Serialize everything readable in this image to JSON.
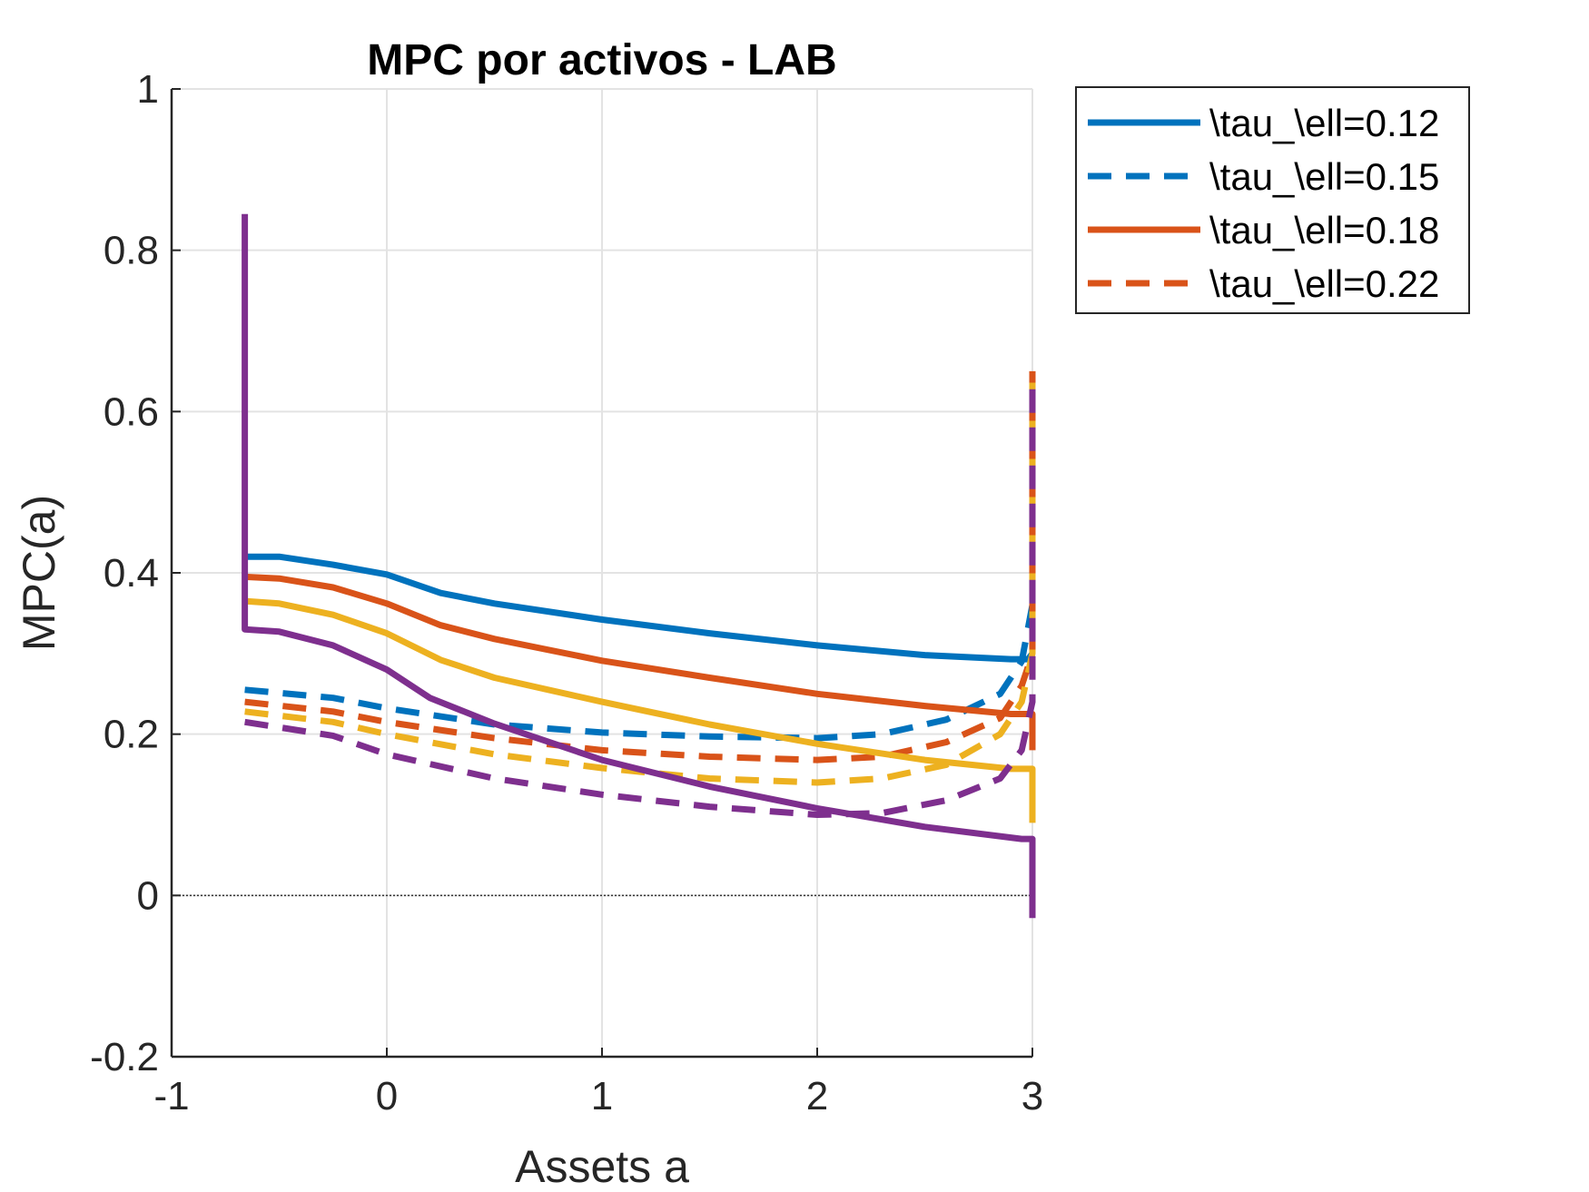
{
  "chart_data": {
    "type": "line",
    "title": "MPC por activos - LAB",
    "xlabel": "Assets a",
    "ylabel": "MPC(a)",
    "xlim": [
      -1,
      3
    ],
    "ylim": [
      -0.2,
      1
    ],
    "xticks": [
      -1,
      0,
      1,
      2,
      3
    ],
    "xtick_labels": [
      "-1",
      "0",
      "1",
      "2",
      "3"
    ],
    "yticks": [
      -0.2,
      0,
      0.2,
      0.4,
      0.6,
      0.8,
      1
    ],
    "ytick_labels": [
      "-0.2",
      "0",
      "0.2",
      "0.4",
      "0.6",
      "0.8",
      "1"
    ],
    "grid": true,
    "zero_reference_line": true,
    "legend_position": "outside-top-right",
    "series": [
      {
        "name": "\\tau_\\ell=0.12",
        "color": "#0072BD",
        "style": "solid",
        "x": [
          -0.66,
          -0.5,
          -0.25,
          0,
          0.25,
          0.5,
          1,
          1.5,
          2,
          2.5,
          2.9,
          2.98,
          3.0
        ],
        "y": [
          0.42,
          0.42,
          0.41,
          0.398,
          0.375,
          0.362,
          0.342,
          0.325,
          0.31,
          0.298,
          0.293,
          0.293,
          0.3
        ]
      },
      {
        "name": "\\tau_\\ell=0.15",
        "color": "#0072BD",
        "style": "dashed",
        "x": [
          -0.66,
          -0.25,
          0,
          0.5,
          1,
          1.5,
          2,
          2.3,
          2.6,
          2.85,
          2.95,
          3.0
        ],
        "y": [
          0.255,
          0.245,
          0.232,
          0.212,
          0.202,
          0.197,
          0.195,
          0.2,
          0.218,
          0.25,
          0.29,
          0.36
        ]
      },
      {
        "name": "\\tau_\\ell=0.18",
        "color": "#D95319",
        "style": "solid",
        "x": [
          -0.66,
          -0.5,
          -0.25,
          0,
          0.25,
          0.5,
          1,
          1.5,
          2,
          2.5,
          2.9,
          3.0,
          3.0
        ],
        "y": [
          0.395,
          0.393,
          0.382,
          0.362,
          0.335,
          0.318,
          0.291,
          0.27,
          0.25,
          0.235,
          0.225,
          0.225,
          0.18
        ]
      },
      {
        "name": "\\tau_\\ell=0.22",
        "color": "#D95319",
        "style": "dashed",
        "x": [
          -0.66,
          -0.25,
          0,
          0.5,
          1,
          1.5,
          2,
          2.3,
          2.6,
          2.85,
          2.95,
          3.0,
          3.0
        ],
        "y": [
          0.24,
          0.228,
          0.215,
          0.195,
          0.18,
          0.172,
          0.168,
          0.172,
          0.19,
          0.22,
          0.26,
          0.3,
          0.65
        ]
      },
      {
        "color": "#EDB120",
        "style": "solid",
        "x": [
          -0.66,
          -0.5,
          -0.25,
          0,
          0.25,
          0.5,
          1,
          1.5,
          2,
          2.5,
          2.9,
          3.0,
          3.0
        ],
        "y": [
          0.365,
          0.362,
          0.348,
          0.325,
          0.292,
          0.27,
          0.24,
          0.212,
          0.188,
          0.168,
          0.157,
          0.157,
          0.09
        ]
      },
      {
        "color": "#EDB120",
        "style": "dashed",
        "x": [
          -0.66,
          -0.25,
          0,
          0.5,
          1,
          1.5,
          2,
          2.3,
          2.6,
          2.85,
          2.95,
          3.0,
          3.0
        ],
        "y": [
          0.228,
          0.215,
          0.2,
          0.175,
          0.158,
          0.145,
          0.14,
          0.145,
          0.162,
          0.2,
          0.24,
          0.3,
          0.64
        ]
      },
      {
        "color": "#7E2F8E",
        "style": "solid",
        "x": [
          -0.66,
          -0.66,
          -0.66,
          -0.5,
          -0.25,
          0,
          0.2,
          0.5,
          1,
          1.5,
          2,
          2.5,
          2.95,
          3.0,
          3.0
        ],
        "y": [
          0.845,
          0.33,
          0.33,
          0.327,
          0.31,
          0.28,
          0.245,
          0.213,
          0.168,
          0.135,
          0.108,
          0.085,
          0.07,
          0.07,
          -0.028
        ]
      },
      {
        "color": "#7E2F8E",
        "style": "dashed",
        "x": [
          -0.66,
          -0.25,
          0,
          0.5,
          1,
          1.5,
          2,
          2.3,
          2.6,
          2.85,
          2.95,
          3.0,
          3.0
        ],
        "y": [
          0.215,
          0.198,
          0.175,
          0.145,
          0.125,
          0.11,
          0.1,
          0.102,
          0.118,
          0.145,
          0.18,
          0.24,
          0.63
        ]
      }
    ]
  }
}
